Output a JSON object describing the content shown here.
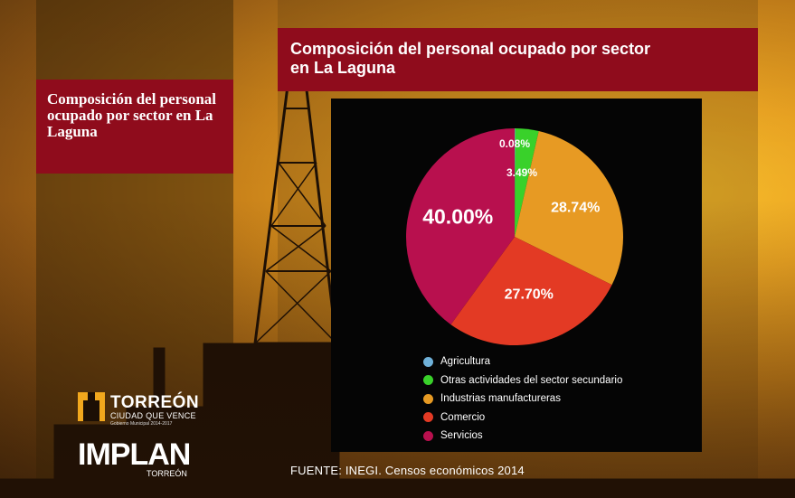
{
  "left_title": "Composición del personal ocupado por sector en La Laguna",
  "chart_data": {
    "type": "pie",
    "title": "Composición del personal ocupado por sector en La Laguna",
    "categories": [
      "Agricultura",
      "Otras actividades del sector secundario",
      "Industrias manufactureras",
      "Comercio",
      "Servicios"
    ],
    "values": [
      0.08,
      3.49,
      28.74,
      27.7,
      40.0
    ],
    "data_labels": [
      "0.08%",
      "3.49%",
      "28.74%",
      "27.70%",
      "40.00%"
    ],
    "colors": [
      "#6fb1d9",
      "#39d12a",
      "#e79a23",
      "#e33a24",
      "#b8104e"
    ],
    "legend_position": "bottom"
  },
  "source": "FUENTE: INEGI. Censos económicos 2014",
  "logos": {
    "torreon_title": "TORREÓN",
    "torreon_sub": "CIUDAD QUE VENCE",
    "torreon_fine": "Gobierno Municipal 2014-2017",
    "implan_title": "IMPLAN",
    "implan_sub": "TORREÓN"
  }
}
